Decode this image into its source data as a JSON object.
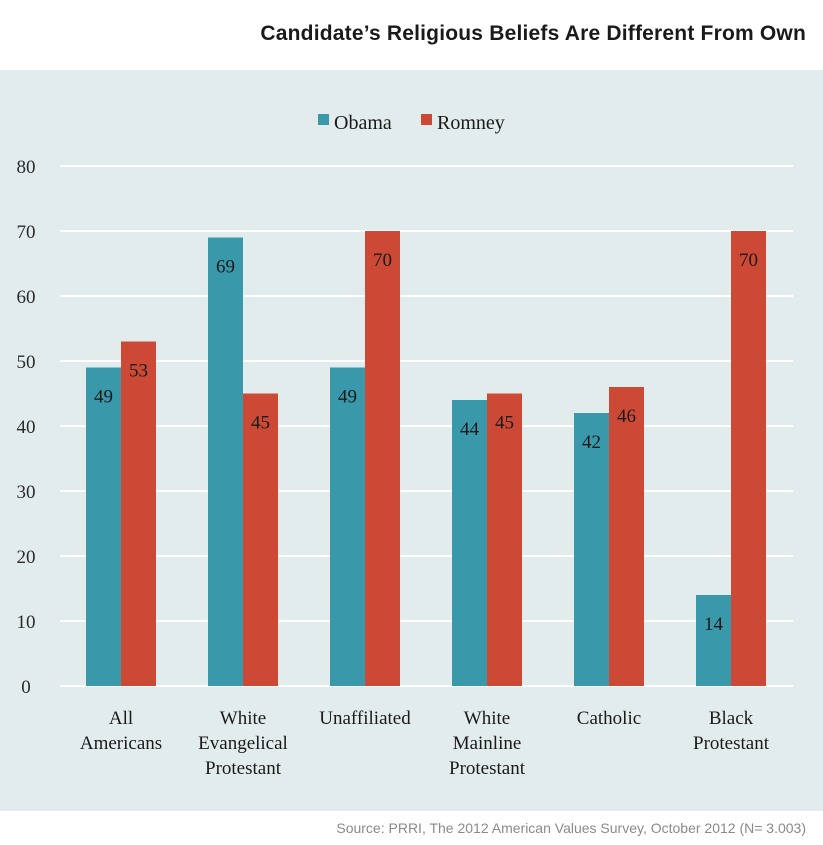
{
  "title": "Candidate’s Religious Beliefs Are Different From Own",
  "source": "Source: PRRI, The 2012 American Values Survey, October 2012 (N= 3.003)",
  "colors": {
    "Obama": "#3a98ab",
    "Romney": "#cc4a35",
    "panel": "#e3ecec",
    "grid": "#ffffff"
  },
  "chart_data": {
    "type": "bar",
    "title": "Candidate’s Religious Beliefs Are Different From Own",
    "categories": [
      [
        "All",
        "Americans"
      ],
      [
        "White",
        "Evangelical",
        "Protestant"
      ],
      [
        "Unaffiliated"
      ],
      [
        "White",
        "Mainline",
        "Protestant"
      ],
      [
        "Catholic"
      ],
      [
        "Black",
        "Protestant"
      ]
    ],
    "series": [
      {
        "name": "Obama",
        "values": [
          49,
          69,
          49,
          44,
          42,
          14
        ]
      },
      {
        "name": "Romney",
        "values": [
          53,
          45,
          70,
          45,
          46,
          70
        ]
      }
    ],
    "ylim": [
      0,
      80
    ],
    "yticks": [
      0,
      10,
      20,
      30,
      40,
      50,
      60,
      70,
      80
    ],
    "grid": true,
    "legend": "top-center"
  }
}
